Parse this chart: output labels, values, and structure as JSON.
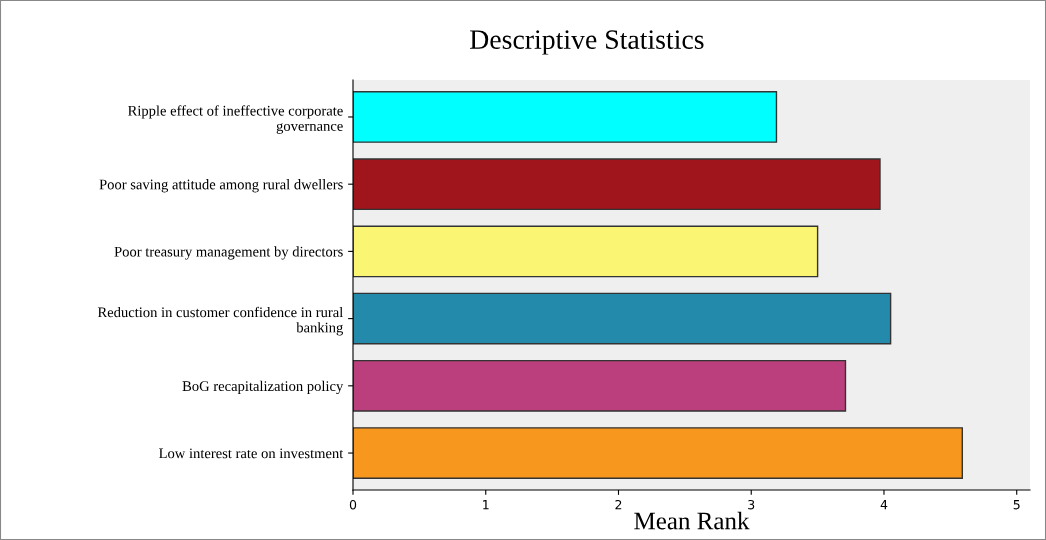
{
  "chart_data": {
    "type": "bar",
    "orientation": "horizontal",
    "title": "Descriptive Statistics",
    "xlabel": "Mean Rank",
    "categories": [
      "Ripple effect of ineffective corporate\ngovernance",
      "Poor saving attitude among rural dwellers",
      "Poor treasury management by directors",
      "Reduction in customer confidence in rural\nbanking",
      "BoG recapitalization policy",
      "Low interest rate on investment"
    ],
    "values": [
      3.19,
      3.97,
      3.5,
      4.05,
      3.71,
      4.59
    ],
    "colors": [
      "#00ffff",
      "#a0151b",
      "#fbf574",
      "#238aac",
      "#bb3f7d",
      "#f7971e"
    ],
    "xlim": [
      0,
      5.1
    ],
    "xticks": [
      0,
      1,
      2,
      3,
      4,
      5
    ],
    "grid": false,
    "legend": false
  }
}
